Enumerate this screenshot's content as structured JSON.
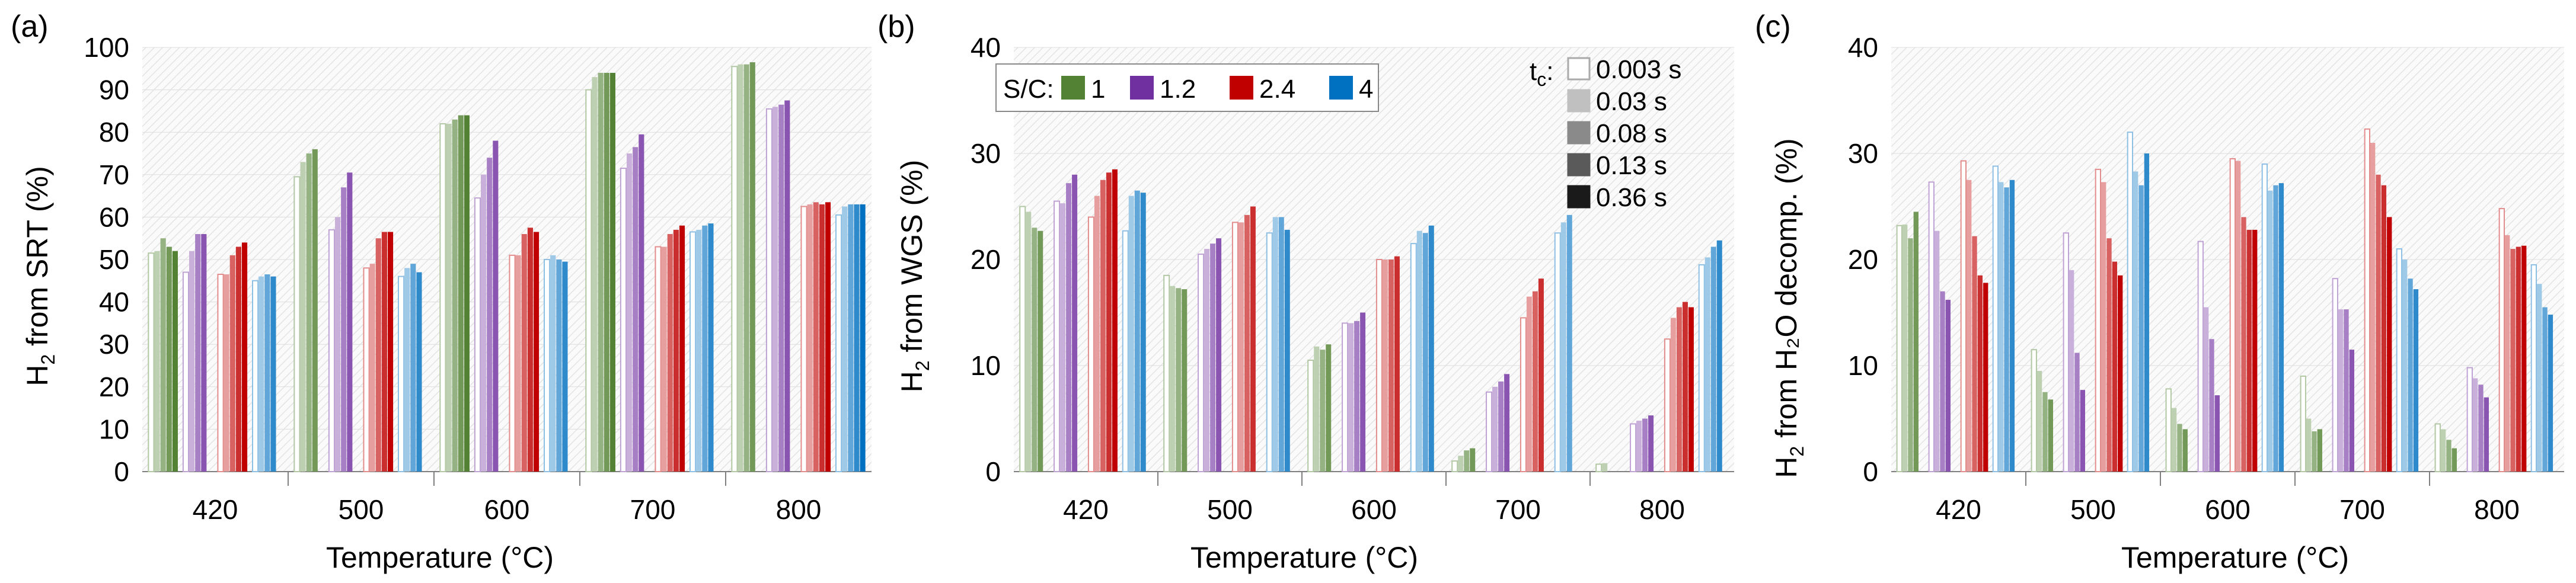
{
  "chart_data": [
    {
      "type": "bar",
      "panel_label": "(a)",
      "ylabel_prefix": "H",
      "ylabel_sub": "2",
      "ylabel_rest": " from SRT (%)",
      "xlabel": "Temperature (°C)",
      "ylim": [
        0,
        100
      ],
      "yticks": [
        0,
        10,
        20,
        30,
        40,
        50,
        60,
        70,
        80,
        90,
        100
      ],
      "categories": [
        "420",
        "500",
        "600",
        "700",
        "800"
      ],
      "series": [
        {
          "name": "1",
          "color": "#548235",
          "values": [
            [
              51.5,
              52,
              55,
              53,
              52
            ],
            [
              69.5,
              73,
              75,
              76,
              0
            ],
            [
              82,
              82,
              83,
              84,
              84
            ],
            [
              90,
              93,
              94,
              94,
              94
            ],
            [
              95.5,
              96,
              96,
              96.5,
              0
            ]
          ]
        },
        {
          "name": "1.2",
          "color": "#7030a0",
          "values": [
            [
              47,
              52,
              56,
              56,
              0
            ],
            [
              57,
              60,
              67,
              70.5,
              0
            ],
            [
              64.5,
              70,
              74,
              78,
              0
            ],
            [
              71.5,
              75,
              76.5,
              79.5,
              0
            ],
            [
              85.5,
              86,
              86.5,
              87.5,
              0
            ]
          ]
        },
        {
          "name": "2.4",
          "color": "#c00000",
          "values": [
            [
              46.5,
              46.5,
              51,
              53,
              54
            ],
            [
              48,
              49,
              55,
              56.5,
              56.5
            ],
            [
              51,
              51,
              56,
              57.5,
              56.5
            ],
            [
              53,
              53,
              56,
              57,
              58
            ],
            [
              62.5,
              63,
              63.5,
              63,
              63.5
            ]
          ]
        },
        {
          "name": "4",
          "color": "#0070c0",
          "values": [
            [
              45,
              46,
              46.5,
              46,
              0
            ],
            [
              46,
              48,
              49,
              47,
              0
            ],
            [
              50,
              51,
              50,
              49.5,
              0
            ],
            [
              56.5,
              57,
              58,
              58.5,
              0
            ],
            [
              60.5,
              62.5,
              63,
              63,
              63
            ]
          ]
        }
      ]
    },
    {
      "type": "bar",
      "panel_label": "(b)",
      "ylabel_prefix": "H",
      "ylabel_sub": "2",
      "ylabel_rest": " from WGS (%)",
      "xlabel": "Temperature (°C)",
      "ylim": [
        0,
        40
      ],
      "yticks": [
        0,
        10,
        20,
        30,
        40
      ],
      "categories": [
        "420",
        "500",
        "600",
        "700",
        "800"
      ],
      "series": [
        {
          "name": "1",
          "color": "#548235",
          "values": [
            [
              25,
              24.5,
              23,
              22.7,
              0
            ],
            [
              18.5,
              17.5,
              17.3,
              17.2,
              0
            ],
            [
              10.5,
              11.8,
              11.5,
              12,
              0
            ],
            [
              1,
              1.5,
              2,
              2.2,
              0
            ],
            [
              0.7,
              0.8,
              0,
              0,
              0
            ]
          ]
        },
        {
          "name": "1.2",
          "color": "#7030a0",
          "values": [
            [
              25.5,
              25.3,
              27.2,
              28,
              0
            ],
            [
              20.5,
              21,
              21.5,
              22,
              0
            ],
            [
              14,
              14,
              14.2,
              15,
              0
            ],
            [
              7.5,
              8,
              8.5,
              9.2,
              0
            ],
            [
              4.5,
              4.8,
              5,
              5.3,
              0
            ]
          ]
        },
        {
          "name": "2.4",
          "color": "#c00000",
          "values": [
            [
              24,
              26,
              27.5,
              28.2,
              28.5
            ],
            [
              23.5,
              23.5,
              24.2,
              25,
              0
            ],
            [
              20,
              20,
              20,
              20.3,
              0
            ],
            [
              14.5,
              16.5,
              17,
              18.2,
              0
            ],
            [
              12.5,
              14.5,
              15.5,
              16,
              15.5
            ]
          ]
        },
        {
          "name": "4",
          "color": "#0070c0",
          "values": [
            [
              22.7,
              26,
              26.5,
              26.3,
              0
            ],
            [
              22.5,
              24,
              24,
              22.8,
              0
            ],
            [
              21.5,
              22.7,
              22.5,
              23.2,
              0
            ],
            [
              22.5,
              23.5,
              24.2,
              0,
              0
            ],
            [
              19.5,
              20.2,
              21.2,
              21.8,
              0
            ]
          ]
        }
      ]
    },
    {
      "type": "bar",
      "panel_label": "(c)",
      "ylabel_prefix": "H",
      "ylabel_sub": "2",
      "ylabel_rest": " from H₂O decomp. (%)",
      "xlabel": "Temperature (°C)",
      "ylim": [
        0,
        40
      ],
      "yticks": [
        0,
        10,
        20,
        30,
        40
      ],
      "categories": [
        "420",
        "500",
        "600",
        "700",
        "800"
      ],
      "series": [
        {
          "name": "1",
          "color": "#548235",
          "values": [
            [
              23.2,
              23.3,
              22,
              24.5,
              0
            ],
            [
              11.5,
              9.5,
              7.5,
              6.8,
              0
            ],
            [
              7.8,
              6,
              4.5,
              4,
              0
            ],
            [
              9,
              5,
              3.8,
              4,
              0
            ],
            [
              4.5,
              4,
              3,
              2.2,
              0
            ]
          ]
        },
        {
          "name": "1.2",
          "color": "#7030a0",
          "values": [
            [
              27.3,
              22.7,
              17,
              16.2,
              0
            ],
            [
              22.5,
              19,
              11.2,
              7.7,
              0
            ],
            [
              21.7,
              15.5,
              12.5,
              7.2,
              0
            ],
            [
              18.2,
              15.3,
              15.3,
              11.5,
              0
            ],
            [
              9.8,
              8.8,
              8.2,
              7,
              0
            ]
          ]
        },
        {
          "name": "2.4",
          "color": "#c00000",
          "values": [
            [
              29.3,
              27.5,
              22.2,
              18.5,
              17.8
            ],
            [
              28.5,
              27.3,
              22,
              19.8,
              18.5
            ],
            [
              29.5,
              29.3,
              24,
              22.8,
              22.8
            ],
            [
              32.3,
              31,
              28,
              27,
              24
            ],
            [
              24.8,
              22.3,
              21,
              21.2,
              21.3
            ]
          ]
        },
        {
          "name": "4",
          "color": "#0070c0",
          "values": [
            [
              28.8,
              27.3,
              26.8,
              27.5,
              0
            ],
            [
              32,
              28.3,
              27,
              30,
              0
            ],
            [
              29,
              26.5,
              27,
              27.2,
              0
            ],
            [
              21,
              20,
              18.2,
              17.2,
              0
            ],
            [
              19.5,
              17.7,
              15.5,
              14.8,
              0
            ]
          ]
        }
      ]
    }
  ],
  "legend_sc": {
    "label": "S/C:",
    "entries": [
      {
        "name": "1",
        "color": "#548235"
      },
      {
        "name": "1.2",
        "color": "#7030a0"
      },
      {
        "name": "2.4",
        "color": "#c00000"
      },
      {
        "name": "4",
        "color": "#0070c0"
      }
    ]
  },
  "legend_tc": {
    "label_main": "t",
    "label_sub": "c",
    "label_tail": ":",
    "entries": [
      {
        "name": "0.003 s",
        "shade": "#ffffff",
        "stroke": "#aaaaaa"
      },
      {
        "name": "0.03 s",
        "shade": "#c0c0c0",
        "stroke": "#c0c0c0"
      },
      {
        "name": "0.08 s",
        "shade": "#8a8a8a",
        "stroke": "#8a8a8a"
      },
      {
        "name": "0.13 s",
        "shade": "#5a5a5a",
        "stroke": "#5a5a5a"
      },
      {
        "name": "0.36 s",
        "shade": "#1a1a1a",
        "stroke": "#1a1a1a"
      }
    ]
  }
}
